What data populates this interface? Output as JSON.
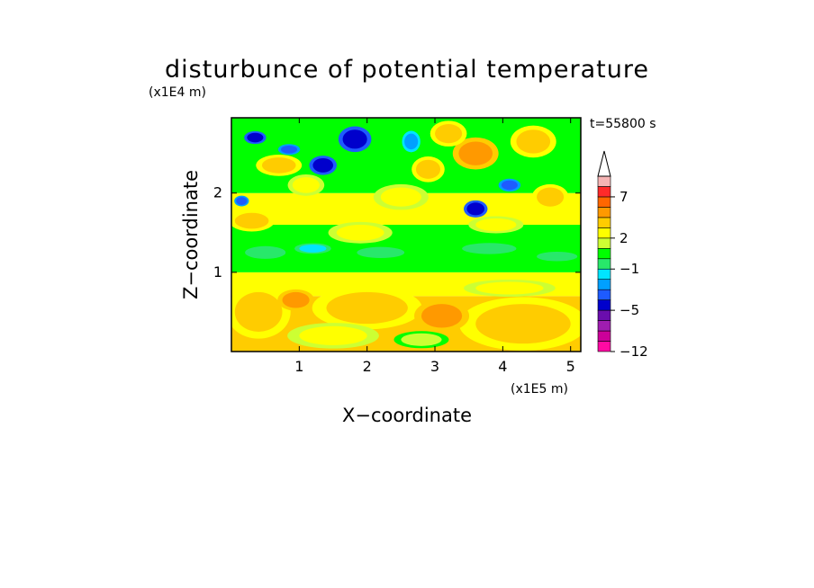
{
  "chart_data": {
    "type": "heatmap",
    "title": "disturbunce of potential temperature",
    "xlabel": "X−coordinate",
    "ylabel": "Z−coordinate",
    "x_unit": "(x1E5 m)",
    "y_unit": "(x1E4 m)",
    "time_label": "t=55800 s",
    "xlim": [
      0,
      5.15
    ],
    "ylim": [
      0,
      2.95
    ],
    "x_ticks": [
      {
        "value": 1,
        "label": "1"
      },
      {
        "value": 2,
        "label": "2"
      },
      {
        "value": 3,
        "label": "3"
      },
      {
        "value": 4,
        "label": "4"
      },
      {
        "value": 5,
        "label": "5"
      }
    ],
    "y_ticks": [
      {
        "value": 1,
        "label": "1"
      },
      {
        "value": 2,
        "label": "2"
      }
    ],
    "colorbar": {
      "levels": [
        -12,
        -10,
        -8,
        -6,
        -5,
        -4,
        -3,
        -2,
        -1,
        0,
        1,
        2,
        3,
        4,
        5,
        7,
        9,
        11
      ],
      "colors": [
        "#ff0aa3",
        "#cc0099",
        "#9f1db0",
        "#6a0dad",
        "#0000cc",
        "#1e5bff",
        "#00a0ff",
        "#00e5ff",
        "#28e86a",
        "#00ff00",
        "#ccff33",
        "#ffff00",
        "#ffcc00",
        "#ff9900",
        "#ff6600",
        "#ff2a2a",
        "#f5b4b4"
      ],
      "over_arrow_color": "#ffffff",
      "tick_labels": [
        {
          "value": 7,
          "label": "7"
        },
        {
          "value": 2,
          "label": "2"
        },
        {
          "value": -1,
          "label": "−1"
        },
        {
          "value": -5,
          "label": "−5"
        },
        {
          "value": -12,
          "label": "−12"
        }
      ]
    },
    "field_description_colors": {
      "band_0_0.7": "#ffcc00",
      "band_0.7_1.0": "#ffff00",
      "band_1.0_1.6": "#00ff00",
      "band_1.6_2.0": "#ffff00",
      "band_2.0_2.95": "#00ff00"
    },
    "blobs": [
      {
        "x": 1.82,
        "z": 2.68,
        "rx": 0.18,
        "rz": 0.12,
        "v": -5
      },
      {
        "x": 1.35,
        "z": 2.35,
        "rx": 0.15,
        "rz": 0.09,
        "v": -5
      },
      {
        "x": 0.35,
        "z": 2.7,
        "rx": 0.12,
        "rz": 0.06,
        "v": -5
      },
      {
        "x": 0.85,
        "z": 2.55,
        "rx": 0.12,
        "rz": 0.05,
        "v": -4
      },
      {
        "x": 3.6,
        "z": 1.8,
        "rx": 0.13,
        "rz": 0.08,
        "v": -5
      },
      {
        "x": 4.1,
        "z": 2.1,
        "rx": 0.12,
        "rz": 0.06,
        "v": -4
      },
      {
        "x": 2.65,
        "z": 2.65,
        "rx": 0.1,
        "rz": 0.1,
        "v": -3
      },
      {
        "x": 0.15,
        "z": 1.9,
        "rx": 0.08,
        "rz": 0.05,
        "v": -4
      },
      {
        "x": 3.6,
        "z": 2.5,
        "rx": 0.25,
        "rz": 0.15,
        "v": 4
      },
      {
        "x": 3.2,
        "z": 2.75,
        "rx": 0.2,
        "rz": 0.12,
        "v": 3
      },
      {
        "x": 4.45,
        "z": 2.65,
        "rx": 0.25,
        "rz": 0.15,
        "v": 3
      },
      {
        "x": 2.9,
        "z": 2.3,
        "rx": 0.18,
        "rz": 0.12,
        "v": 3
      },
      {
        "x": 0.7,
        "z": 2.35,
        "rx": 0.25,
        "rz": 0.1,
        "v": 3
      },
      {
        "x": 1.1,
        "z": 2.1,
        "rx": 0.2,
        "rz": 0.1,
        "v": 2
      },
      {
        "x": 4.7,
        "z": 1.95,
        "rx": 0.2,
        "rz": 0.12,
        "v": 3
      },
      {
        "x": 2.5,
        "z": 1.95,
        "rx": 0.3,
        "rz": 0.12,
        "v": 2
      },
      {
        "x": 0.3,
        "z": 1.65,
        "rx": 0.25,
        "rz": 0.1,
        "v": 3
      },
      {
        "x": 1.9,
        "z": 1.5,
        "rx": 0.35,
        "rz": 0.1,
        "v": 2
      },
      {
        "x": 3.9,
        "z": 1.6,
        "rx": 0.3,
        "rz": 0.08,
        "v": 2
      },
      {
        "x": 0.5,
        "z": 1.25,
        "rx": 0.3,
        "rz": 0.08,
        "v": -1
      },
      {
        "x": 2.2,
        "z": 1.25,
        "rx": 0.35,
        "rz": 0.07,
        "v": -1
      },
      {
        "x": 3.8,
        "z": 1.3,
        "rx": 0.4,
        "rz": 0.07,
        "v": -1
      },
      {
        "x": 4.8,
        "z": 1.2,
        "rx": 0.3,
        "rz": 0.06,
        "v": -1
      },
      {
        "x": 1.2,
        "z": 1.3,
        "rx": 0.2,
        "rz": 0.05,
        "v": -2
      },
      {
        "x": 2.0,
        "z": 0.55,
        "rx": 0.6,
        "rz": 0.2,
        "v": 3
      },
      {
        "x": 4.3,
        "z": 0.35,
        "rx": 0.7,
        "rz": 0.25,
        "v": 3
      },
      {
        "x": 0.4,
        "z": 0.5,
        "rx": 0.35,
        "rz": 0.25,
        "v": 3
      },
      {
        "x": 3.1,
        "z": 0.45,
        "rx": 0.3,
        "rz": 0.15,
        "v": 4
      },
      {
        "x": 1.5,
        "z": 0.2,
        "rx": 0.5,
        "rz": 0.12,
        "v": 2
      },
      {
        "x": 2.8,
        "z": 0.15,
        "rx": 0.3,
        "rz": 0.08,
        "v": 1
      },
      {
        "x": 0.95,
        "z": 0.65,
        "rx": 0.2,
        "rz": 0.1,
        "v": 4
      },
      {
        "x": 4.1,
        "z": 0.8,
        "rx": 0.5,
        "rz": 0.08,
        "v": 2
      }
    ]
  }
}
